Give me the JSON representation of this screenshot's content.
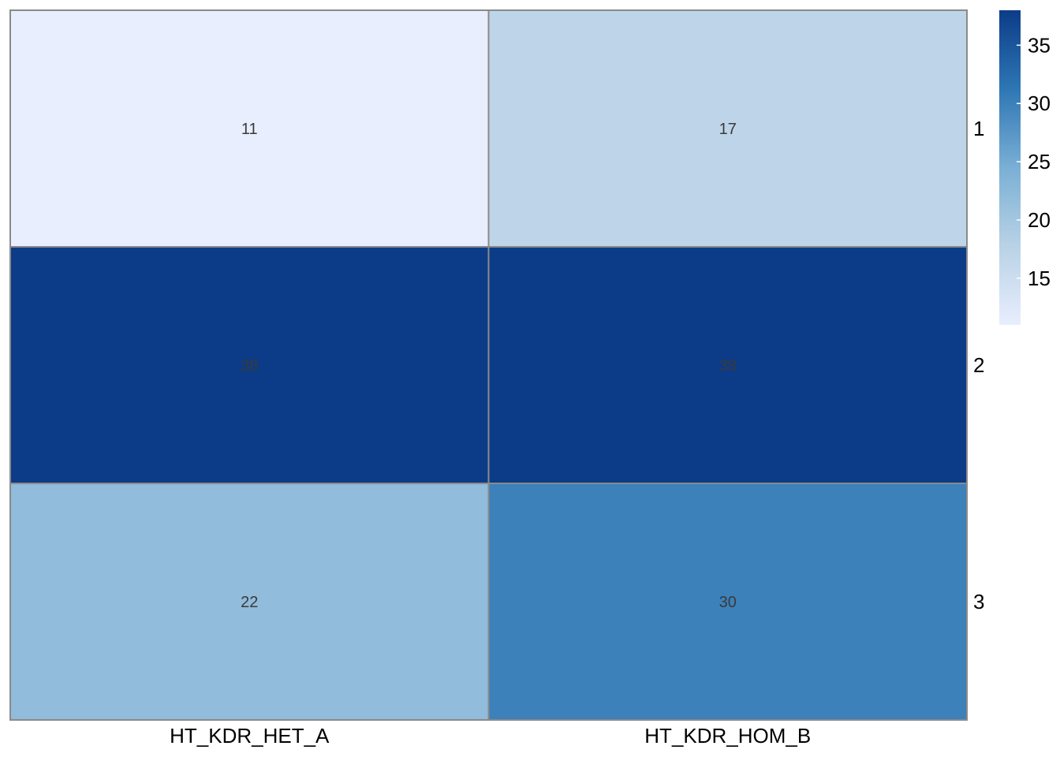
{
  "chart_data": {
    "type": "heatmap",
    "title": "",
    "xlabel": "",
    "ylabel": "",
    "columns": [
      "HT_KDR_HET_A",
      "HT_KDR_HOM_B"
    ],
    "rows": [
      "1",
      "2",
      "3"
    ],
    "values": [
      [
        11,
        17
      ],
      [
        38,
        38
      ],
      [
        22,
        30
      ]
    ],
    "cell_labels": [
      [
        "11",
        "17"
      ],
      [
        "38",
        "38"
      ],
      [
        "22",
        "30"
      ]
    ],
    "color_scale": {
      "palette": "Blues",
      "min": 11,
      "max": 38,
      "stops": [
        "#e8eefd",
        "#b9d2e6",
        "#7aafd5",
        "#2e76b4",
        "#0c3c88"
      ]
    },
    "legend": {
      "position": "right",
      "ticks": [
        15,
        20,
        25,
        30,
        35
      ],
      "tick_labels": [
        "15",
        "20",
        "25",
        "30",
        "35"
      ]
    },
    "grid": false,
    "border_color": "#8a8a8a"
  }
}
